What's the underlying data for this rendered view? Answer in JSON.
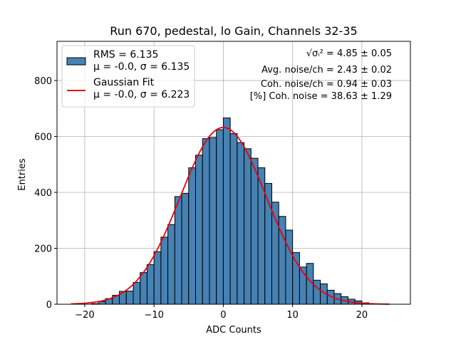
{
  "chart_data": {
    "type": "bar",
    "title": "Run 670, pedestal, lo Gain, Channels 32-35",
    "xlabel": "ADC Counts",
    "ylabel": "Entries",
    "xlim": [
      -24,
      27
    ],
    "ylim": [
      0,
      940
    ],
    "xticks": [
      -20,
      -10,
      0,
      10,
      20
    ],
    "xtick_labels": [
      "−20",
      "−10",
      "0",
      "10",
      "20"
    ],
    "yticks": [
      0,
      200,
      400,
      600,
      800
    ],
    "ytick_labels": [
      "0",
      "200",
      "400",
      "600",
      "800"
    ],
    "grid": true,
    "legend_position": "top-left",
    "bin_width": 1,
    "bin_edges_start": -19,
    "values": [
      2,
      10,
      20,
      32,
      46,
      47,
      78,
      113,
      142,
      188,
      240,
      285,
      385,
      396,
      488,
      533,
      592,
      596,
      624,
      666,
      610,
      578,
      556,
      522,
      488,
      432,
      365,
      314,
      265,
      185,
      133,
      146,
      86,
      73,
      50,
      38,
      27,
      18,
      12,
      5
    ],
    "series": [
      {
        "name": "RMS = 6.135",
        "name_line2": "μ = -0.0, σ = 6.135",
        "color": "#4682b4"
      },
      {
        "name": "Gaussian Fit",
        "name_line2": "μ = -0.0, σ = 6.223",
        "color": "#e8000b",
        "mu": 0.0,
        "sigma": 6.223,
        "amplitude": 632,
        "x_range": [
          -22,
          24
        ]
      }
    ],
    "annotations": [
      {
        "prefix": "√σᵢ²",
        "text": " = 4.85 ± 0.05"
      },
      {
        "text": "Avg. noise/ch = 2.43 ± 0.02"
      },
      {
        "text": "Coh. noise/ch = 0.94 ± 0.03"
      },
      {
        "text": "[%] Coh. noise = 38.63 ± 1.29"
      }
    ]
  }
}
